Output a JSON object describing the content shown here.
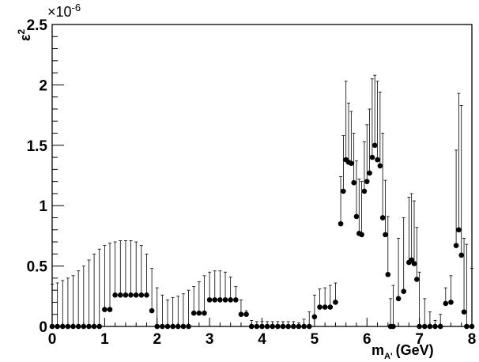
{
  "chart_data": {
    "type": "scatter",
    "title": "",
    "xlabel": "m",
    "xlabel_sub": "A'",
    "xlabel_unit": "(GeV)",
    "ylabel": "ε",
    "ylabel_sup": "2",
    "y_multiplier": "×10",
    "y_multiplier_exp": "-6",
    "xlim": [
      0,
      8
    ],
    "ylim": [
      0,
      2.5
    ],
    "x_ticks": [
      "0",
      "1",
      "2",
      "3",
      "4",
      "5",
      "6",
      "7",
      "8"
    ],
    "y_ticks": [
      "0",
      "0.5",
      "1",
      "1.5",
      "2",
      "2.5"
    ],
    "grid": false,
    "legend": "none",
    "colors": {
      "points": "#000000",
      "error_bars": "#000000",
      "band": "#000000"
    },
    "series": [
      {
        "x": [
          0.0,
          0.1,
          0.2,
          0.3,
          0.4,
          0.5,
          0.6,
          0.7,
          0.8,
          0.9,
          1.0,
          1.1,
          1.2,
          1.3,
          1.4,
          1.5,
          1.6,
          1.7,
          1.8,
          1.9,
          2.0,
          2.1,
          2.2,
          2.3,
          2.4,
          2.5,
          2.6,
          2.7,
          2.8,
          2.9,
          3.0,
          3.1,
          3.2,
          3.3,
          3.4,
          3.5,
          3.6,
          3.7,
          3.8,
          3.9,
          4.0,
          4.1,
          4.2,
          4.3,
          4.4,
          4.5,
          4.6,
          4.7,
          4.8,
          4.9,
          5.0,
          5.1,
          5.2,
          5.3,
          5.4,
          5.5,
          5.55,
          5.6,
          5.65,
          5.7,
          5.75,
          5.8,
          5.85,
          5.9,
          5.95,
          6.0,
          6.05,
          6.1,
          6.15,
          6.2,
          6.25,
          6.3,
          6.35,
          6.4,
          6.45,
          6.5,
          6.6,
          6.7,
          6.8,
          6.85,
          6.9,
          6.95,
          7.0,
          7.1,
          7.2,
          7.3,
          7.4,
          7.5,
          7.6,
          7.7,
          7.75,
          7.8,
          7.85,
          7.9,
          8.0
        ],
        "y": [
          0.0,
          0.0,
          0.0,
          0.0,
          0.0,
          0.0,
          0.0,
          0.0,
          0.0,
          0.0,
          0.14,
          0.14,
          0.26,
          0.26,
          0.26,
          0.26,
          0.26,
          0.26,
          0.26,
          0.13,
          0.0,
          0.0,
          0.0,
          0.0,
          0.0,
          0.0,
          0.0,
          0.11,
          0.11,
          0.11,
          0.22,
          0.22,
          0.22,
          0.22,
          0.22,
          0.22,
          0.1,
          0.1,
          0.0,
          0.0,
          0.0,
          0.0,
          0.0,
          0.0,
          0.0,
          0.0,
          0.0,
          0.0,
          0.0,
          0.0,
          0.08,
          0.16,
          0.16,
          0.16,
          0.2,
          0.85,
          1.12,
          1.38,
          1.36,
          1.35,
          1.19,
          0.91,
          0.77,
          0.76,
          1.12,
          1.2,
          1.27,
          1.4,
          1.5,
          1.38,
          1.33,
          0.9,
          0.76,
          0.43,
          0.0,
          0.0,
          0.23,
          0.29,
          0.53,
          0.55,
          0.52,
          0.39,
          0.0,
          0.0,
          0.0,
          0.0,
          0.0,
          0.19,
          0.2,
          0.67,
          0.8,
          0.59,
          0.12,
          0.0,
          0.0
        ],
        "y_upper": [
          0.35,
          0.36,
          0.38,
          0.4,
          0.42,
          0.46,
          0.5,
          0.55,
          0.6,
          0.64,
          0.67,
          0.69,
          0.7,
          0.71,
          0.71,
          0.71,
          0.7,
          0.67,
          0.6,
          0.48,
          0.32,
          0.26,
          0.22,
          0.24,
          0.25,
          0.27,
          0.3,
          0.33,
          0.37,
          0.42,
          0.45,
          0.46,
          0.46,
          0.45,
          0.41,
          0.33,
          0.22,
          0.13,
          0.05,
          0.04,
          0.04,
          0.04,
          0.04,
          0.04,
          0.04,
          0.04,
          0.04,
          0.03,
          0.06,
          0.12,
          0.26,
          0.31,
          0.32,
          0.34,
          0.36,
          1.24,
          1.58,
          2.03,
          1.85,
          1.78,
          1.6,
          1.37,
          1.22,
          1.2,
          1.53,
          1.67,
          1.8,
          2.05,
          2.08,
          2.03,
          1.94,
          1.6,
          1.21,
          0.91,
          0.23,
          0.34,
          0.73,
          0.9,
          1.07,
          1.1,
          1.04,
          0.82,
          0.45,
          0.23,
          0.12,
          0.05,
          0.1,
          0.32,
          0.42,
          1.46,
          1.93,
          1.83,
          0.73,
          0.68,
          0.48
        ]
      }
    ]
  }
}
